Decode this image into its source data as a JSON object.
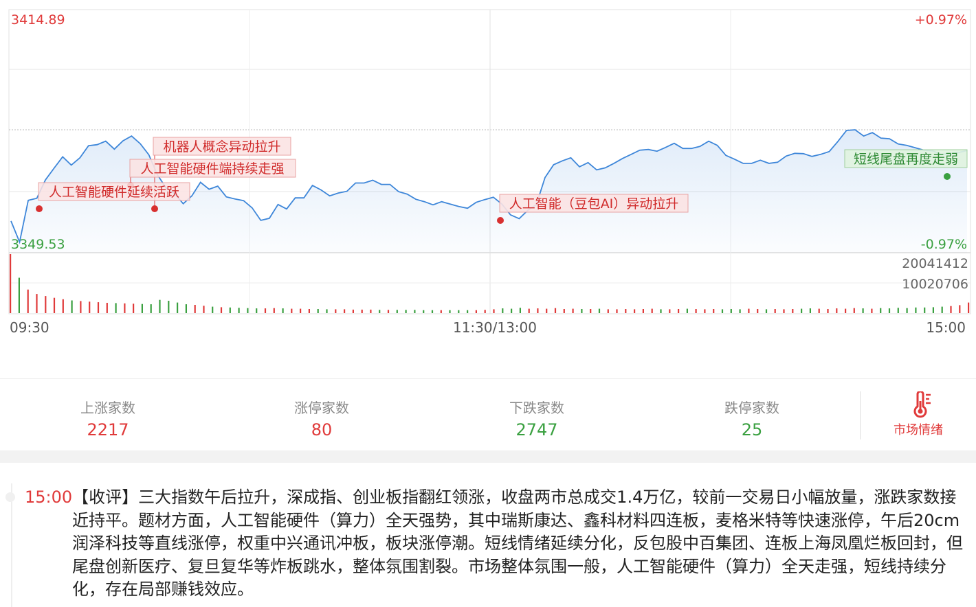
{
  "chart": {
    "price_high_label": "3414.89",
    "price_low_label": "3349.53",
    "pct_high_label": "+0.97%",
    "pct_low_label": "-0.97%",
    "vol_high_label": "20041412",
    "vol_mid_label": "10020706",
    "time_labels": [
      "09:30",
      "11:30/13:00",
      "15:00"
    ],
    "colors": {
      "line": "#3d86d9",
      "up": "#e03a3a",
      "down": "#3aa040",
      "annotation_bg": "#fbe3e3",
      "annotation_border": "#e8a3a3",
      "annotation_green_bg": "#e0f3df",
      "annotation_green_border": "#9fcf9c"
    },
    "annotations": [
      {
        "text": "机器人概念异动拉升",
        "color": "red"
      },
      {
        "text": "人工智能硬件端持续走强",
        "color": "red"
      },
      {
        "text": "人工智能硬件延续活跃",
        "color": "red"
      },
      {
        "text": "人工智能（豆包AI）异动拉升",
        "color": "red"
      },
      {
        "text": "短线尾盘再度走弱",
        "color": "green"
      }
    ]
  },
  "chart_data": {
    "type": "line",
    "y_range": [
      3349.53,
      3414.89
    ],
    "pct_range": [
      -0.97,
      0.97
    ],
    "volume_max": 20041412,
    "x_labels": [
      "09:30",
      "11:30/13:00",
      "15:00"
    ],
    "price": [
      3356.5,
      3350.4,
      3362.5,
      3363.1,
      3368.4,
      3371.8,
      3375.1,
      3372.7,
      3374.8,
      3378.3,
      3378.6,
      3379.6,
      3377.3,
      3379.7,
      3381.1,
      3378.9,
      3375.7,
      3369.9,
      3366.1,
      3364.4,
      3361.5,
      3363.8,
      3367.7,
      3365.7,
      3366.6,
      3363.5,
      3362.9,
      3362.4,
      3360.3,
      3356.7,
      3357.3,
      3361.3,
      3360.0,
      3363.2,
      3363.2,
      3366.8,
      3365.5,
      3363.8,
      3364.6,
      3365.1,
      3367.5,
      3367.5,
      3368.3,
      3367.1,
      3367.1,
      3365.0,
      3364.3,
      3362.8,
      3362.1,
      3361.2,
      3362.1,
      3361.4,
      3360.7,
      3360.2,
      3361.9,
      3362.7,
      3363.4,
      3361.4,
      3358.3,
      3357.2,
      3359.6,
      3361.3,
      3369.1,
      3372.8,
      3373.9,
      3374.8,
      3372.2,
      3373.4,
      3371.3,
      3371.9,
      3373.2,
      3374.6,
      3375.8,
      3377.0,
      3377.2,
      3376.7,
      3377.8,
      3379.0,
      3377.5,
      3377.5,
      3378.1,
      3379.6,
      3378.4,
      3375.5,
      3374.4,
      3373.2,
      3373.2,
      3374.1,
      3373.2,
      3373.5,
      3375.3,
      3376.1,
      3376.0,
      3375.2,
      3375.8,
      3376.6,
      3379.5,
      3382.7,
      3382.9,
      3381.1,
      3382.1,
      3380.5,
      3380.3,
      3378.8,
      3378.4,
      3377.7,
      3377.0,
      3376.8,
      3375.8,
      3376.0,
      3376.3,
      3376.9
    ],
    "volume": [
      20041412,
      12000000,
      8000000,
      6500000,
      5800000,
      5200000,
      4700000,
      4300000,
      4100000,
      3900000,
      3700000,
      3500000,
      3400000,
      3300000,
      3200000,
      3100000,
      3000000,
      4500000,
      4200000,
      3600000,
      3000000,
      2800000,
      2500000,
      2200000,
      2000000,
      1900000,
      1800000,
      1700000,
      1600000,
      1600000,
      1700000,
      1600000,
      1500000,
      1500000,
      1400000,
      1400000,
      1300000,
      1300000,
      1300000,
      1200000,
      1200000,
      1200000,
      1100000,
      1100000,
      1100000,
      1100000,
      1100000,
      1000000,
      1000000,
      1000000,
      1000000,
      1000000,
      1000000,
      1000000,
      1100000,
      1300000,
      1600000,
      1500000,
      1800000,
      1500000,
      1600000,
      1500000,
      1700000,
      1400000,
      1500000,
      1400000,
      1400000,
      1500000,
      1300000,
      1300000,
      1400000,
      1300000,
      1400000,
      1500000,
      1300000,
      1300000,
      1400000,
      1500000,
      1400000,
      1300000,
      1400000,
      1300000,
      1400000,
      1300000,
      1500000,
      1400000,
      1300000,
      1400000,
      1300000,
      1400000,
      1500000,
      1600000,
      1500000,
      1400000,
      1600000,
      1500000,
      1700000,
      1600000,
      1500000,
      1700000,
      1600000,
      1800000,
      1700000,
      1900000,
      1900000,
      2000000,
      2200000,
      2400000,
      2700000,
      3600000
    ]
  },
  "stats": [
    {
      "label": "上涨家数",
      "value": "2217"
    },
    {
      "label": "涨停家数",
      "value": "80"
    },
    {
      "label": "下跌家数",
      "value": "2747"
    },
    {
      "label": "跌停家数",
      "value": "25"
    }
  ],
  "mood": {
    "label": "市场情绪",
    "icon": "thermometer-icon"
  },
  "news": {
    "time": "15:00",
    "text": "【收评】三大指数午后拉升，深成指、创业板指翻红领涨，收盘两市总成交1.4万亿，较前一交易日小幅放量，涨跌家数接近持平。题材方面，人工智能硬件（算力）全天强势，其中瑞斯康达、鑫科材料四连板，麦格米特等快速涨停，午后20cm润泽科技等直线涨停，权重中兴通讯冲板，板块涨停潮。短线情绪延续分化，反包股中百集团、连板上海凤凰烂板回封，但尾盘创新医疗、复旦复华等炸板跳水，整体氛围割裂。市场整体氛围一般，人工智能硬件（算力）全天走强，短线持续分化，存在局部赚钱效应。"
  }
}
